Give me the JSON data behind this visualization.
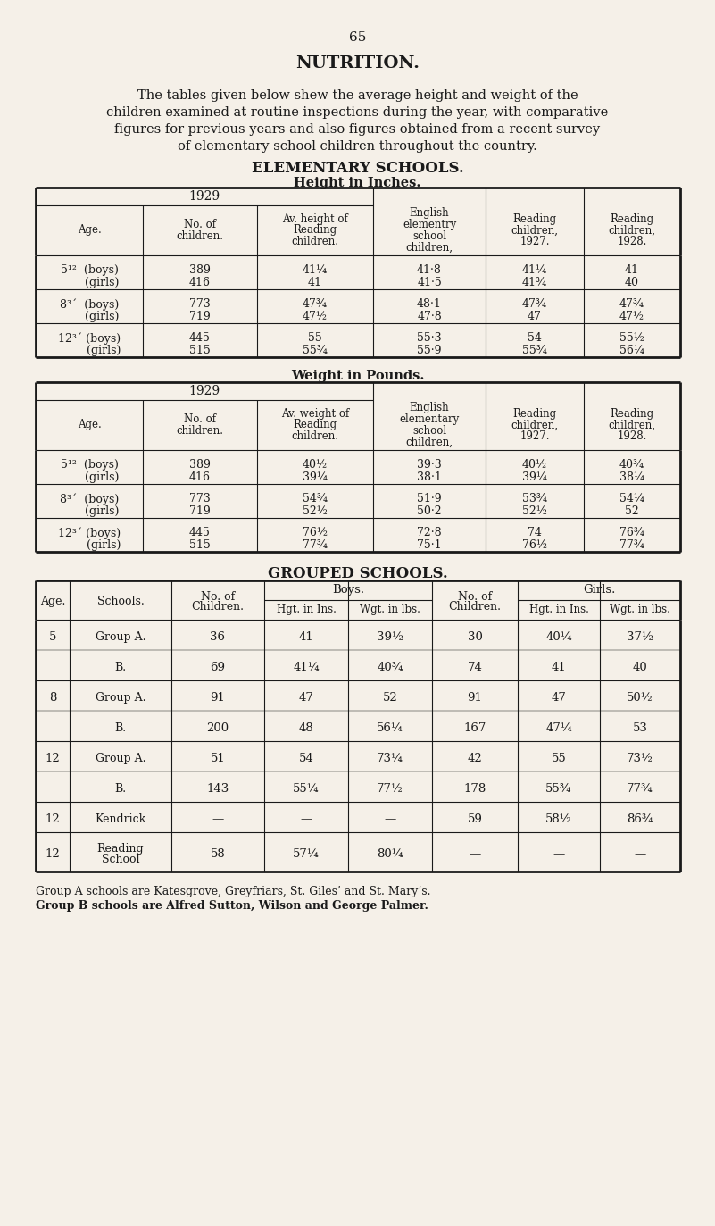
{
  "bg_color": "#f5f0e8",
  "text_color": "#1a1a1a",
  "page_number": "65",
  "title": "NUTRITION.",
  "intro_lines": [
    "The tables given below shew the average height and weight of the",
    "children examined at routine inspections during the year, with comparative",
    "figures for previous years and also figures obtained from a recent survey",
    "of elementary school children throughout the country."
  ],
  "section1_title": "ELEMENTARY SCHOOLS.",
  "section1_subtitle1": "Height in Inches.",
  "height_col_headers": [
    "Age.",
    "No. of\nchildren.",
    "Av. height of\nReading\nchildren.",
    "English\nelementry\nschool\nchildren,",
    "Reading\nchildren,\n1927.",
    "Reading\nchildren,\n1928."
  ],
  "height_rows": [
    [
      "5¹²  (boys)",
      "389",
      "41¼",
      "41·8",
      "41¼",
      "41"
    ],
    [
      "       (girls)",
      "416",
      "41",
      "41·5",
      "41¾",
      "40"
    ],
    [
      "8³´  (boys)",
      "773",
      "47¾",
      "48·1",
      "47¾",
      "47¾"
    ],
    [
      "       (girls)",
      "719",
      "47½",
      "47·8",
      "47",
      "47½"
    ],
    [
      "12³´ (boys)",
      "445",
      "55",
      "55·3",
      "54",
      "55½"
    ],
    [
      "        (girls)",
      "515",
      "55¾",
      "55·9",
      "55¾",
      "56¼"
    ]
  ],
  "section1_subtitle2": "Weight in Pounds.",
  "weight_col_headers": [
    "Age.",
    "No. of\nchildren.",
    "Av. weight of\nReading\nchildren.",
    "English\nelementary\nschool\nchildren,",
    "Reading\nchildren,\n1927.",
    "Reading\nchildren,\n1928."
  ],
  "weight_rows": [
    [
      "5¹²  (boys)",
      "389",
      "40½",
      "39·3",
      "40½",
      "40¾"
    ],
    [
      "       (girls)",
      "416",
      "39¼",
      "38·1",
      "39¼",
      "38¼"
    ],
    [
      "8³´  (boys)",
      "773",
      "54¾",
      "51·9",
      "53¾",
      "54¼"
    ],
    [
      "       (girls)",
      "719",
      "52½",
      "50·2",
      "52½",
      "52"
    ],
    [
      "12³´ (boys)",
      "445",
      "76½",
      "72·8",
      "74",
      "76¾"
    ],
    [
      "        (girls)",
      "515",
      "77¾",
      "75·1",
      "76½",
      "77¾"
    ]
  ],
  "section2_title": "GROUPED SCHOOLS.",
  "grouped_rows": [
    [
      "5",
      "Group A.",
      "36",
      "41",
      "39½",
      "30",
      "40¼",
      "37½"
    ],
    [
      "",
      "B.",
      "69",
      "41¼",
      "40¾",
      "74",
      "41",
      "40"
    ],
    [
      "8",
      "Group A.",
      "91",
      "47",
      "52",
      "91",
      "47",
      "50½"
    ],
    [
      "",
      "B.",
      "200",
      "48",
      "56¼",
      "167",
      "47¼",
      "53"
    ],
    [
      "12",
      "Group A.",
      "51",
      "54",
      "73¼",
      "42",
      "55",
      "73½"
    ],
    [
      "",
      "B.",
      "143",
      "55¼",
      "77½",
      "178",
      "55¾",
      "77¾"
    ],
    [
      "12",
      "Kendrick",
      "—",
      "—",
      "—",
      "59",
      "58½",
      "86¾"
    ],
    [
      "12",
      "Reading\nSchool",
      "58",
      "57¼",
      "80¼",
      "—",
      "—",
      "—"
    ]
  ],
  "footnote1": "Group A schools are Katesgrove, Greyfriars, St. Giles’ and St. Mary’s.",
  "footnote2": "Group B schools are Alfred Sutton, Wilson and George Palmer."
}
